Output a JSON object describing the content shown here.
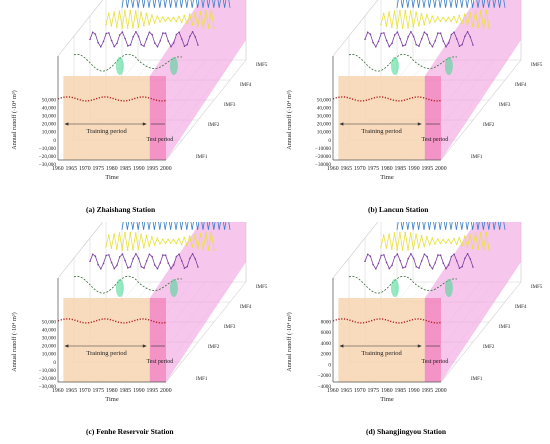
{
  "chart_data": [
    {
      "type": "line",
      "caption": "(a) Zhaishang Station",
      "ylabel": "Annual runoff (·10⁴ m³)",
      "xlabel": "Time",
      "x_ticks": [
        "1960",
        "1965",
        "1970",
        "1975",
        "1980",
        "1985",
        "1990",
        "1995",
        "2000"
      ],
      "y_ticks": [
        "50,000",
        "40,000",
        "30,000",
        "20,000",
        "10,000",
        "0",
        "−10,000",
        "−20,000",
        "−30,000"
      ],
      "ylim": [
        -30000,
        50000
      ],
      "xlim": [
        1960,
        2000
      ],
      "layers": [
        "IMF1",
        "IMF2",
        "IMF3",
        "IMF4",
        "IMF5"
      ],
      "annotations": {
        "training": "Training period",
        "test": "Test period"
      },
      "train_range": [
        1962,
        1994
      ],
      "test_range": [
        1994,
        2000
      ]
    },
    {
      "type": "line",
      "caption": "(b) Lancun   Station",
      "ylabel": "Annual runoff (·10⁴ m³)",
      "xlabel": "Time",
      "x_ticks": [
        "1960",
        "1965",
        "1970",
        "1975",
        "1980",
        "1985",
        "1990",
        "1995",
        "2000"
      ],
      "y_ticks": [
        "50,000",
        "40,000",
        "30,000",
        "20,000",
        "10,000",
        "0",
        "−10000",
        "−20000",
        "−30000"
      ],
      "ylim": [
        -30000,
        50000
      ],
      "xlim": [
        1960,
        2000
      ],
      "layers": [
        "IMF1",
        "IMF2",
        "IMF3",
        "IMF4",
        "IMF5"
      ],
      "annotations": {
        "training": "Training period",
        "test": "Test period"
      },
      "train_range": [
        1962,
        1994
      ],
      "test_range": [
        1994,
        2000
      ]
    },
    {
      "type": "line",
      "caption": "(c) Fenhe Reservoir Station",
      "ylabel": "Annual runoff (·10⁴ m³)",
      "xlabel": "Time",
      "x_ticks": [
        "1960",
        "1965",
        "1970",
        "1975",
        "1980",
        "1985",
        "1990",
        "1995",
        "2000"
      ],
      "y_ticks": [
        "50,000",
        "40,000",
        "30,000",
        "20,000",
        "10,000",
        "0",
        "−10,000",
        "−20,000",
        "−30,000"
      ],
      "ylim": [
        -30000,
        50000
      ],
      "xlim": [
        1960,
        2000
      ],
      "layers": [
        "IMF1",
        "IMF2",
        "IMF3",
        "IMF4",
        "IMF5"
      ],
      "annotations": {
        "training": "Training period",
        "test": "Test period"
      },
      "train_range": [
        1962,
        1994
      ],
      "test_range": [
        1994,
        2000
      ]
    },
    {
      "type": "line",
      "caption": "(d) Shangjingyou   Station",
      "ylabel": "Annual runoff (·10⁴ m³)",
      "xlabel": "Time",
      "x_ticks": [
        "1960",
        "1965",
        "1970",
        "1975",
        "1980",
        "1985",
        "1990",
        "1995",
        "2000"
      ],
      "y_ticks": [
        "8000",
        "6000",
        "4000",
        "2000",
        "0",
        "−2000",
        "−4000"
      ],
      "ylim": [
        -4000,
        8000
      ],
      "xlim": [
        1960,
        2000
      ],
      "layers": [
        "IMF1",
        "IMF2",
        "IMF3",
        "IMF4",
        "IMF5"
      ],
      "annotations": {
        "training": "Training period",
        "test": "Test period"
      },
      "train_range": [
        1962,
        1994
      ],
      "test_range": [
        1994,
        2000
      ]
    }
  ],
  "colors": {
    "imf1": "#b22222",
    "imf2": "#3a6b3a",
    "imf3": "#7b3fa0",
    "imf4": "#e8e23a",
    "imf5": "#3a7fc9",
    "train_fill": "#f7d3b0",
    "test_fill": "#f2a0e0",
    "green_peak": "#40d890"
  }
}
